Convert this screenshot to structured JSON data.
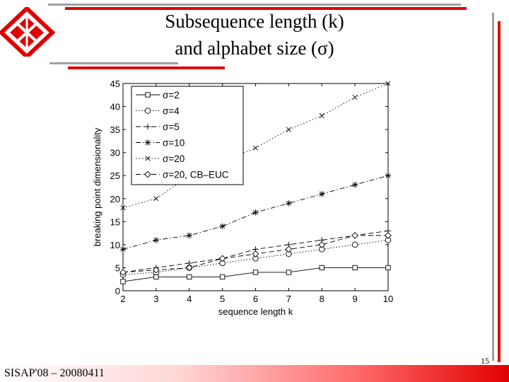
{
  "slide": {
    "title_line1": "Subsequence length (k)",
    "title_line2": "and alphabet size (σ)",
    "footer": "SISAP'08 – 20080411",
    "page_number": "15",
    "accent_color": "#e00000",
    "rule_gray": "#a0a0a0"
  },
  "logo": {
    "icon": "diamond-logo-icon"
  },
  "chart_data": {
    "type": "line",
    "xlabel": "sequence length k",
    "ylabel": "breaking point dimensionality",
    "xlim": [
      2,
      10
    ],
    "ylim": [
      0,
      45
    ],
    "x_ticks": [
      2,
      3,
      4,
      5,
      6,
      7,
      8,
      9,
      10
    ],
    "y_ticks": [
      0,
      5,
      10,
      15,
      20,
      25,
      30,
      35,
      40,
      45
    ],
    "legend_position": "top-left",
    "grid": false,
    "x": [
      2,
      3,
      4,
      5,
      6,
      7,
      8,
      9,
      10
    ],
    "series": [
      {
        "name": "σ=2",
        "marker": "square",
        "dash": "",
        "values": [
          2,
          3,
          3,
          3,
          4,
          4,
          5,
          5,
          5
        ]
      },
      {
        "name": "σ=4",
        "marker": "circle",
        "dash": "1.5 2.5",
        "values": [
          3.5,
          4,
          5,
          6,
          7,
          8,
          9,
          10,
          11
        ]
      },
      {
        "name": "σ=5",
        "marker": "plus",
        "dash": "7 4",
        "values": [
          4,
          5,
          6,
          7,
          9,
          10,
          11,
          12,
          13
        ]
      },
      {
        "name": "σ=10",
        "marker": "star",
        "dash": "7 3 1.5 3",
        "values": [
          9,
          11,
          12,
          14,
          17,
          19,
          21,
          23,
          25
        ]
      },
      {
        "name": "σ=20",
        "marker": "x",
        "dash": "1.5 3",
        "values": [
          18,
          20,
          25,
          28,
          31,
          35,
          38,
          42,
          45
        ]
      },
      {
        "name": "σ=20, CB–EUC",
        "marker": "diamond",
        "dash": "7 4",
        "values": [
          4,
          4.5,
          5,
          7,
          8,
          9,
          10,
          12,
          12
        ]
      }
    ]
  }
}
